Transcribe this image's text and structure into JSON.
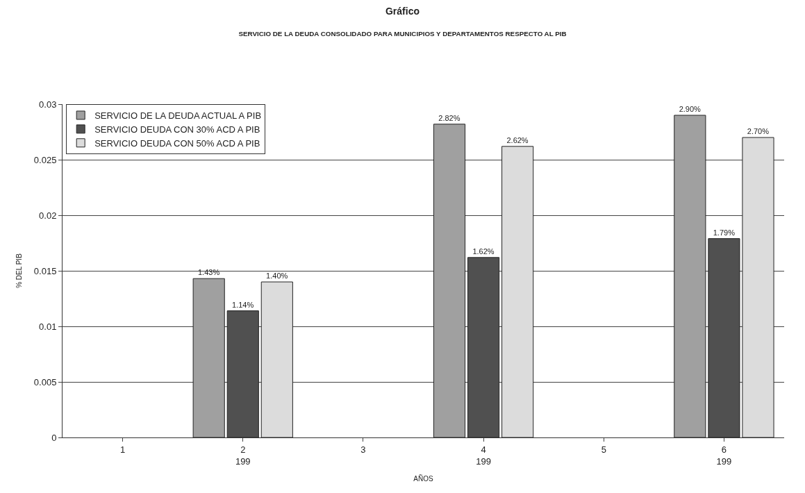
{
  "chart_data": {
    "type": "bar",
    "title": "Gráfico",
    "subtitle": "SERVICIO DE LA DEUDA CONSOLIDADO PARA MUNICIPIOS Y DEPARTAMENTOS RESPECTO AL PIB",
    "xlabel": "AÑOS",
    "ylabel": "% DEL PIB",
    "categories": [
      "1",
      "2\n199",
      "3",
      "4\n199",
      "5",
      "6\n199"
    ],
    "series": [
      {
        "name": "SERVICIO DE LA DEUDA ACTUAL A PIB",
        "color": "#a0a0a0",
        "values": [
          null,
          0.0143,
          null,
          0.0282,
          null,
          0.029
        ],
        "value_labels": [
          null,
          "1.43%",
          null,
          "2.82%",
          null,
          "2.90%"
        ]
      },
      {
        "name": "SERVICIO DEUDA CON 30% ACD A PIB",
        "color": "#505050",
        "values": [
          null,
          0.0114,
          null,
          0.0162,
          null,
          0.0179
        ],
        "value_labels": [
          null,
          "1.14%",
          null,
          "1.62%",
          null,
          "1.79%"
        ]
      },
      {
        "name": "SERVICIO DEUDA CON 50% ACD A PIB",
        "color": "#dcdcdc",
        "values": [
          null,
          0.014,
          null,
          0.0262,
          null,
          0.027
        ],
        "value_labels": [
          null,
          "1.40%",
          null,
          "2.62%",
          null,
          "2.70%"
        ]
      }
    ],
    "ylim": [
      0,
      0.03
    ],
    "yticks": [
      0,
      0.005,
      0.01,
      0.015,
      0.02,
      0.025,
      0.03
    ],
    "grid": "y",
    "legend": "top left"
  }
}
